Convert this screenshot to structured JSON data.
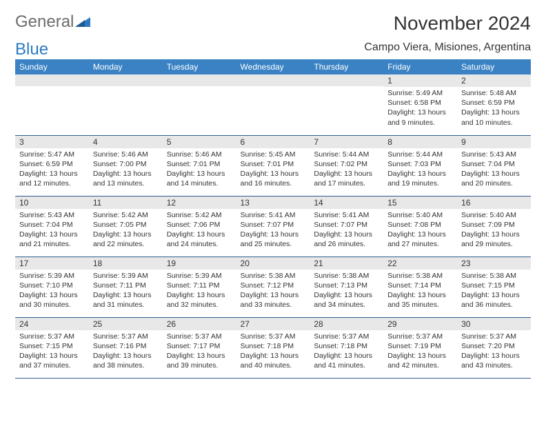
{
  "brand": {
    "part1": "General",
    "part2": "Blue"
  },
  "title": "November 2024",
  "location": "Campo Viera, Misiones, Argentina",
  "colors": {
    "header_bg": "#3a82c4",
    "header_fg": "#ffffff",
    "daynum_bg": "#e8e8e8",
    "rule": "#2f5d8f",
    "brand_gray": "#6b6b6b",
    "brand_blue": "#2b79c2"
  },
  "weekdays": [
    "Sunday",
    "Monday",
    "Tuesday",
    "Wednesday",
    "Thursday",
    "Friday",
    "Saturday"
  ],
  "weeks": [
    [
      {
        "num": "",
        "sunrise": "",
        "sunset": "",
        "daylight": ""
      },
      {
        "num": "",
        "sunrise": "",
        "sunset": "",
        "daylight": ""
      },
      {
        "num": "",
        "sunrise": "",
        "sunset": "",
        "daylight": ""
      },
      {
        "num": "",
        "sunrise": "",
        "sunset": "",
        "daylight": ""
      },
      {
        "num": "",
        "sunrise": "",
        "sunset": "",
        "daylight": ""
      },
      {
        "num": "1",
        "sunrise": "Sunrise: 5:49 AM",
        "sunset": "Sunset: 6:58 PM",
        "daylight": "Daylight: 13 hours and 9 minutes."
      },
      {
        "num": "2",
        "sunrise": "Sunrise: 5:48 AM",
        "sunset": "Sunset: 6:59 PM",
        "daylight": "Daylight: 13 hours and 10 minutes."
      }
    ],
    [
      {
        "num": "3",
        "sunrise": "Sunrise: 5:47 AM",
        "sunset": "Sunset: 6:59 PM",
        "daylight": "Daylight: 13 hours and 12 minutes."
      },
      {
        "num": "4",
        "sunrise": "Sunrise: 5:46 AM",
        "sunset": "Sunset: 7:00 PM",
        "daylight": "Daylight: 13 hours and 13 minutes."
      },
      {
        "num": "5",
        "sunrise": "Sunrise: 5:46 AM",
        "sunset": "Sunset: 7:01 PM",
        "daylight": "Daylight: 13 hours and 14 minutes."
      },
      {
        "num": "6",
        "sunrise": "Sunrise: 5:45 AM",
        "sunset": "Sunset: 7:01 PM",
        "daylight": "Daylight: 13 hours and 16 minutes."
      },
      {
        "num": "7",
        "sunrise": "Sunrise: 5:44 AM",
        "sunset": "Sunset: 7:02 PM",
        "daylight": "Daylight: 13 hours and 17 minutes."
      },
      {
        "num": "8",
        "sunrise": "Sunrise: 5:44 AM",
        "sunset": "Sunset: 7:03 PM",
        "daylight": "Daylight: 13 hours and 19 minutes."
      },
      {
        "num": "9",
        "sunrise": "Sunrise: 5:43 AM",
        "sunset": "Sunset: 7:04 PM",
        "daylight": "Daylight: 13 hours and 20 minutes."
      }
    ],
    [
      {
        "num": "10",
        "sunrise": "Sunrise: 5:43 AM",
        "sunset": "Sunset: 7:04 PM",
        "daylight": "Daylight: 13 hours and 21 minutes."
      },
      {
        "num": "11",
        "sunrise": "Sunrise: 5:42 AM",
        "sunset": "Sunset: 7:05 PM",
        "daylight": "Daylight: 13 hours and 22 minutes."
      },
      {
        "num": "12",
        "sunrise": "Sunrise: 5:42 AM",
        "sunset": "Sunset: 7:06 PM",
        "daylight": "Daylight: 13 hours and 24 minutes."
      },
      {
        "num": "13",
        "sunrise": "Sunrise: 5:41 AM",
        "sunset": "Sunset: 7:07 PM",
        "daylight": "Daylight: 13 hours and 25 minutes."
      },
      {
        "num": "14",
        "sunrise": "Sunrise: 5:41 AM",
        "sunset": "Sunset: 7:07 PM",
        "daylight": "Daylight: 13 hours and 26 minutes."
      },
      {
        "num": "15",
        "sunrise": "Sunrise: 5:40 AM",
        "sunset": "Sunset: 7:08 PM",
        "daylight": "Daylight: 13 hours and 27 minutes."
      },
      {
        "num": "16",
        "sunrise": "Sunrise: 5:40 AM",
        "sunset": "Sunset: 7:09 PM",
        "daylight": "Daylight: 13 hours and 29 minutes."
      }
    ],
    [
      {
        "num": "17",
        "sunrise": "Sunrise: 5:39 AM",
        "sunset": "Sunset: 7:10 PM",
        "daylight": "Daylight: 13 hours and 30 minutes."
      },
      {
        "num": "18",
        "sunrise": "Sunrise: 5:39 AM",
        "sunset": "Sunset: 7:11 PM",
        "daylight": "Daylight: 13 hours and 31 minutes."
      },
      {
        "num": "19",
        "sunrise": "Sunrise: 5:39 AM",
        "sunset": "Sunset: 7:11 PM",
        "daylight": "Daylight: 13 hours and 32 minutes."
      },
      {
        "num": "20",
        "sunrise": "Sunrise: 5:38 AM",
        "sunset": "Sunset: 7:12 PM",
        "daylight": "Daylight: 13 hours and 33 minutes."
      },
      {
        "num": "21",
        "sunrise": "Sunrise: 5:38 AM",
        "sunset": "Sunset: 7:13 PM",
        "daylight": "Daylight: 13 hours and 34 minutes."
      },
      {
        "num": "22",
        "sunrise": "Sunrise: 5:38 AM",
        "sunset": "Sunset: 7:14 PM",
        "daylight": "Daylight: 13 hours and 35 minutes."
      },
      {
        "num": "23",
        "sunrise": "Sunrise: 5:38 AM",
        "sunset": "Sunset: 7:15 PM",
        "daylight": "Daylight: 13 hours and 36 minutes."
      }
    ],
    [
      {
        "num": "24",
        "sunrise": "Sunrise: 5:37 AM",
        "sunset": "Sunset: 7:15 PM",
        "daylight": "Daylight: 13 hours and 37 minutes."
      },
      {
        "num": "25",
        "sunrise": "Sunrise: 5:37 AM",
        "sunset": "Sunset: 7:16 PM",
        "daylight": "Daylight: 13 hours and 38 minutes."
      },
      {
        "num": "26",
        "sunrise": "Sunrise: 5:37 AM",
        "sunset": "Sunset: 7:17 PM",
        "daylight": "Daylight: 13 hours and 39 minutes."
      },
      {
        "num": "27",
        "sunrise": "Sunrise: 5:37 AM",
        "sunset": "Sunset: 7:18 PM",
        "daylight": "Daylight: 13 hours and 40 minutes."
      },
      {
        "num": "28",
        "sunrise": "Sunrise: 5:37 AM",
        "sunset": "Sunset: 7:18 PM",
        "daylight": "Daylight: 13 hours and 41 minutes."
      },
      {
        "num": "29",
        "sunrise": "Sunrise: 5:37 AM",
        "sunset": "Sunset: 7:19 PM",
        "daylight": "Daylight: 13 hours and 42 minutes."
      },
      {
        "num": "30",
        "sunrise": "Sunrise: 5:37 AM",
        "sunset": "Sunset: 7:20 PM",
        "daylight": "Daylight: 13 hours and 43 minutes."
      }
    ]
  ]
}
